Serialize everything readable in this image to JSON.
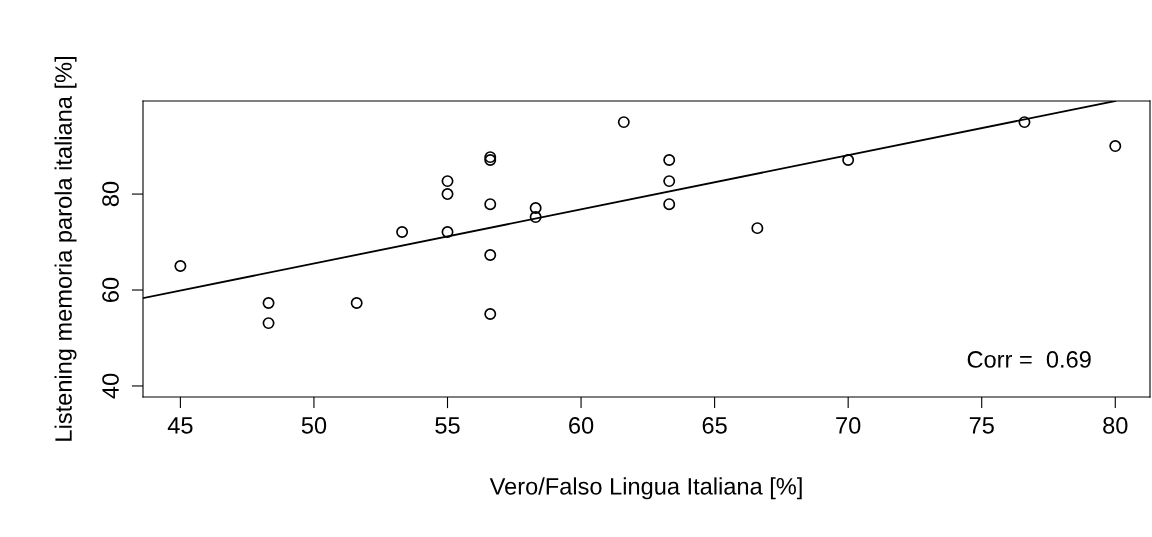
{
  "chart_data": {
    "type": "scatter",
    "xlabel": "Vero/Falso Lingua Italiana [%]",
    "ylabel": "Listening memoria parola italiana [%]",
    "annotations": [
      "Corr =  0.69"
    ],
    "xlim": [
      43.6,
      81.3
    ],
    "ylim": [
      37.7,
      99.4
    ],
    "xticks": [
      45,
      50,
      55,
      60,
      65,
      70,
      75,
      80
    ],
    "yticks": [
      40,
      60,
      80
    ],
    "grid": false,
    "legend": false,
    "series": [
      {
        "marker": "circle",
        "color": "#000000",
        "x": [
          45,
          48.3,
          48.3,
          51.6,
          53.3,
          55,
          55,
          55,
          56.6,
          56.6,
          56.6,
          56.6,
          56.6,
          58.3,
          58.3,
          61.6,
          63.3,
          63.3,
          63.3,
          66.6,
          70,
          76.6,
          80
        ],
        "values": [
          65,
          57.3,
          53.1,
          57.3,
          72.1,
          82.7,
          80,
          72.1,
          87.7,
          87.1,
          77.9,
          67.3,
          55,
          77.1,
          75.2,
          95,
          87.1,
          82.7,
          77.9,
          72.9,
          87.1,
          95,
          90
        ]
      },
      {
        "type": "line",
        "color": "#000000",
        "x": [
          43.6,
          80
        ],
        "values": [
          58.3,
          99.4
        ]
      }
    ]
  }
}
